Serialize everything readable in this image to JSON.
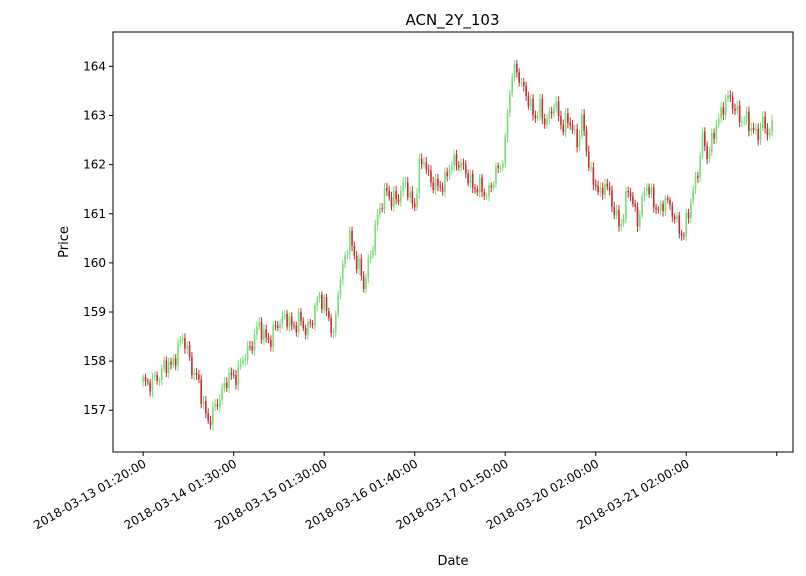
{
  "chart_data": {
    "type": "candlestick",
    "title": "ACN_2Y_103",
    "xlabel": "Date",
    "ylabel": "Price",
    "ylim": [
      156.15,
      164.7
    ],
    "grid": false,
    "legend": "none",
    "colors": {
      "up": "#77dd77",
      "down": "#c03030"
    },
    "y_ticks": [
      157,
      158,
      159,
      160,
      161,
      162,
      163,
      164
    ],
    "x_ticks": [
      {
        "idx": 0,
        "label": "2018-03-13 01:20:00"
      },
      {
        "idx": 39,
        "label": "2018-03-14 01:30:00"
      },
      {
        "idx": 78,
        "label": "2018-03-15 01:30:00"
      },
      {
        "idx": 117,
        "label": "2018-03-16 01:40:00"
      },
      {
        "idx": 156,
        "label": "2018-03-17 01:50:00"
      },
      {
        "idx": 195,
        "label": "2018-03-20 02:00:00"
      },
      {
        "idx": 234,
        "label": "2018-03-21 02:00:00"
      },
      {
        "idx": 273,
        "label": ""
      }
    ],
    "x_range": [
      -13,
      280
    ],
    "num_candles": 272,
    "close_anchors": [
      [
        0,
        157.6
      ],
      [
        4,
        157.55
      ],
      [
        7,
        157.7
      ],
      [
        9,
        157.95
      ],
      [
        12,
        157.85
      ],
      [
        15,
        158.3
      ],
      [
        17,
        158.45
      ],
      [
        19,
        158.2
      ],
      [
        21,
        157.9
      ],
      [
        24,
        157.5
      ],
      [
        26,
        157.1
      ],
      [
        28,
        156.8
      ],
      [
        30,
        156.9
      ],
      [
        33,
        157.3
      ],
      [
        36,
        157.6
      ],
      [
        39,
        157.7
      ],
      [
        41,
        157.8
      ],
      [
        44,
        158.1
      ],
      [
        47,
        158.4
      ],
      [
        50,
        158.7
      ],
      [
        52,
        158.55
      ],
      [
        55,
        158.4
      ],
      [
        58,
        158.8
      ],
      [
        61,
        158.9
      ],
      [
        64,
        158.7
      ],
      [
        67,
        158.85
      ],
      [
        70,
        158.6
      ],
      [
        73,
        158.9
      ],
      [
        76,
        159.3
      ],
      [
        78,
        159.2
      ],
      [
        80,
        158.9
      ],
      [
        82,
        158.4
      ],
      [
        84,
        159.5
      ],
      [
        87,
        160.1
      ],
      [
        89,
        160.5
      ],
      [
        91,
        160.2
      ],
      [
        93,
        159.9
      ],
      [
        95,
        159.5
      ],
      [
        97,
        160.0
      ],
      [
        99,
        160.4
      ],
      [
        101,
        160.9
      ],
      [
        103,
        161.3
      ],
      [
        105,
        161.5
      ],
      [
        107,
        161.2
      ],
      [
        110,
        161.4
      ],
      [
        113,
        161.6
      ],
      [
        115,
        161.3
      ],
      [
        117,
        161.2
      ],
      [
        119,
        161.9
      ],
      [
        121,
        162.1
      ],
      [
        123,
        161.8
      ],
      [
        125,
        161.6
      ],
      [
        127,
        161.5
      ],
      [
        130,
        161.7
      ],
      [
        133,
        162.0
      ],
      [
        136,
        162.1
      ],
      [
        139,
        161.8
      ],
      [
        142,
        161.6
      ],
      [
        145,
        161.5
      ],
      [
        148,
        161.4
      ],
      [
        150,
        161.6
      ],
      [
        152,
        161.8
      ],
      [
        154,
        162.0
      ],
      [
        156,
        162.4
      ],
      [
        157,
        163.1
      ],
      [
        159,
        163.8
      ],
      [
        161,
        164.0
      ],
      [
        163,
        163.6
      ],
      [
        165,
        163.4
      ],
      [
        167,
        163.2
      ],
      [
        169,
        163.0
      ],
      [
        171,
        163.1
      ],
      [
        173,
        162.9
      ],
      [
        175,
        163.0
      ],
      [
        177,
        163.2
      ],
      [
        179,
        163.0
      ],
      [
        181,
        162.8
      ],
      [
        183,
        162.9
      ],
      [
        185,
        162.7
      ],
      [
        187,
        162.5
      ],
      [
        189,
        162.9
      ],
      [
        191,
        162.3
      ],
      [
        193,
        161.8
      ],
      [
        195,
        161.6
      ],
      [
        197,
        161.3
      ],
      [
        199,
        161.7
      ],
      [
        201,
        161.4
      ],
      [
        203,
        161.0
      ],
      [
        205,
        160.8
      ],
      [
        207,
        161.0
      ],
      [
        209,
        161.5
      ],
      [
        211,
        161.2
      ],
      [
        213,
        160.9
      ],
      [
        215,
        161.2
      ],
      [
        217,
        161.6
      ],
      [
        219,
        161.4
      ],
      [
        221,
        161.1
      ],
      [
        223,
        161.0
      ],
      [
        225,
        161.4
      ],
      [
        227,
        161.1
      ],
      [
        229,
        160.9
      ],
      [
        231,
        160.7
      ],
      [
        233,
        160.6
      ],
      [
        235,
        161.0
      ],
      [
        237,
        161.5
      ],
      [
        239,
        161.9
      ],
      [
        241,
        162.5
      ],
      [
        243,
        162.2
      ],
      [
        245,
        162.5
      ],
      [
        247,
        162.8
      ],
      [
        249,
        163.0
      ],
      [
        251,
        163.4
      ],
      [
        253,
        163.3
      ],
      [
        255,
        163.1
      ],
      [
        257,
        163.0
      ],
      [
        259,
        162.9
      ],
      [
        261,
        162.8
      ],
      [
        263,
        162.7
      ],
      [
        265,
        162.65
      ],
      [
        267,
        162.8
      ],
      [
        269,
        162.7
      ],
      [
        271,
        162.75
      ]
    ]
  }
}
